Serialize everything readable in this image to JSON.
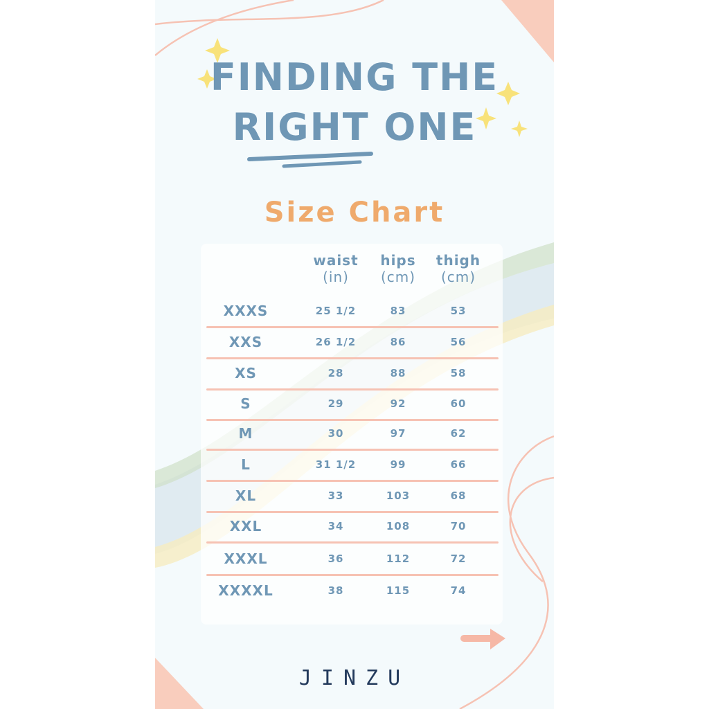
{
  "heading": {
    "line1": "FINDING THE",
    "line2_highlight": "RIGHT",
    "line2_rest": " ONE"
  },
  "subtitle": "Size Chart",
  "table": {
    "columns": [
      {
        "label": "waist",
        "unit": "(in)"
      },
      {
        "label": "hips",
        "unit": "(cm)"
      },
      {
        "label": "thigh",
        "unit": "(cm)"
      }
    ],
    "rows": [
      {
        "size": "XXXS",
        "waist": "25 1/2",
        "hips": "83",
        "thigh": "53"
      },
      {
        "size": "XXS",
        "waist": "26 1/2",
        "hips": "86",
        "thigh": "56"
      },
      {
        "size": "XS",
        "waist": "28",
        "hips": "88",
        "thigh": "58"
      },
      {
        "size": "S",
        "waist": "29",
        "hips": "92",
        "thigh": "60"
      },
      {
        "size": "M",
        "waist": "30",
        "hips": "97",
        "thigh": "62"
      },
      {
        "size": "L",
        "waist": "31 1/2",
        "hips": "99",
        "thigh": "66"
      },
      {
        "size": "XL",
        "waist": "33",
        "hips": "103",
        "thigh": "68"
      },
      {
        "size": "XXL",
        "waist": "34",
        "hips": "108",
        "thigh": "70"
      },
      {
        "size": "XXXL",
        "waist": "36",
        "hips": "112",
        "thigh": "72"
      },
      {
        "size": "XXXXL",
        "waist": "38",
        "hips": "115",
        "thigh": "74"
      }
    ]
  },
  "brand": "JINZU",
  "colors": {
    "text": "#6f97b5",
    "accent": "#efaa6c",
    "coral": "#f6c2b3",
    "star": "#f8e27a",
    "background": "#f4fafc",
    "brand": "#233a5c"
  },
  "icons": {
    "stars": "sparkle-icon",
    "arrow": "arrow-right-icon"
  }
}
